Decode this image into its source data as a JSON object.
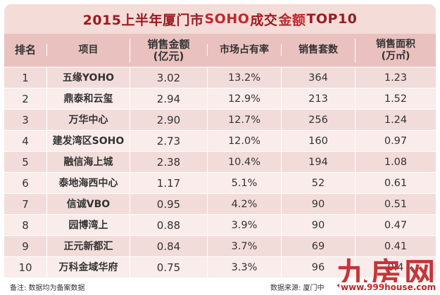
{
  "title": {
    "part1": "2015上半年厦门市",
    "part2": "SOHO",
    "part3": "成交",
    "part4": "金额",
    "part5": "TOP10"
  },
  "chart_data": {
    "type": "table",
    "columns": [
      {
        "key": "rank",
        "line1": "排名",
        "line2": ""
      },
      {
        "key": "name",
        "line1": "项目",
        "line2": ""
      },
      {
        "key": "sales",
        "line1": "销售金额",
        "line2": "(亿元)"
      },
      {
        "key": "share",
        "line1": "市场占有率",
        "line2": ""
      },
      {
        "key": "units",
        "line1": "销售套数",
        "line2": ""
      },
      {
        "key": "area",
        "line1": "销售面积",
        "line2": "(万㎡)"
      }
    ],
    "rows": [
      {
        "rank": "1",
        "name": "五缘YOHO",
        "sales": "3.02",
        "share": "13.2%",
        "units": "364",
        "area": "1.23"
      },
      {
        "rank": "2",
        "name": "鼎泰和云玺",
        "sales": "2.94",
        "share": "12.9%",
        "units": "213",
        "area": "1.52"
      },
      {
        "rank": "3",
        "name": "万华中心",
        "sales": "2.90",
        "share": "12.7%",
        "units": "256",
        "area": "1.24"
      },
      {
        "rank": "4",
        "name": "建发湾区SOHO",
        "sales": "2.73",
        "share": "12.0%",
        "units": "160",
        "area": "0.97"
      },
      {
        "rank": "5",
        "name": "融信海上城",
        "sales": "2.38",
        "share": "10.4%",
        "units": "194",
        "area": "1.08"
      },
      {
        "rank": "6",
        "name": "泰地海西中心",
        "sales": "1.17",
        "share": "5.1%",
        "units": "52",
        "area": "0.61"
      },
      {
        "rank": "7",
        "name": "信诚VBO",
        "sales": "0.95",
        "share": "4.2%",
        "units": "90",
        "area": "0.51"
      },
      {
        "rank": "8",
        "name": "园博湾上",
        "sales": "0.88",
        "share": "3.9%",
        "units": "90",
        "area": "0.47"
      },
      {
        "rank": "9",
        "name": "正元新都汇",
        "sales": "0.84",
        "share": "3.7%",
        "units": "69",
        "area": "0.41"
      },
      {
        "rank": "10",
        "name": "万科金域华府",
        "sales": "0.75",
        "share": "3.3%",
        "units": "96",
        "area": "0.4"
      }
    ]
  },
  "footer": {
    "note": "备注: 数据均为备案数据",
    "source": "数据来源: 厦门中"
  },
  "watermark": {
    "text": "九房网",
    "url": "www.999house.com"
  },
  "colors": {
    "title_bg": "#f4dcd8",
    "header_bg": "#e9c2bf",
    "row_odd": "#f2dcda",
    "row_even": "#f9ecea",
    "accent": "#c0262b"
  }
}
